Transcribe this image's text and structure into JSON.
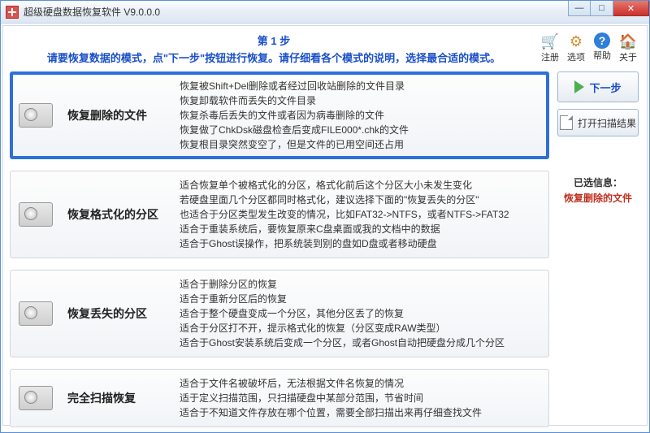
{
  "window": {
    "title": "超级硬盘数据恢复软件 V9.0.0.0"
  },
  "toolbar": {
    "register": "注册",
    "options": "选项",
    "help": "帮助",
    "about": "关于",
    "register_icon": "🛒",
    "options_icon": "⚙",
    "help_icon": "?",
    "about_icon": "🏠"
  },
  "step": {
    "no": "第 1 步",
    "desc": "请要恢复数据的模式，点\"下一步\"按钮进行恢复。请仔细看各个模式的说明，选择最合适的模式。"
  },
  "modes": [
    {
      "title": "恢复删除的文件",
      "selected": true,
      "lines": [
        "恢复被Shift+Del删除或者经过回收站删除的文件目录",
        "恢复卸载软件而丢失的文件目录",
        "恢复杀毒后丢失的文件或者因为病毒删除的文件",
        "恢复做了ChkDsk磁盘检查后变成FILE000*.chk的文件",
        "恢复根目录突然变空了，但是文件的已用空间还占用"
      ]
    },
    {
      "title": "恢复格式化的分区",
      "selected": false,
      "lines": [
        "适合恢复单个被格式化的分区，格式化前后这个分区大小未发生变化",
        "若硬盘里面几个分区都同时格式化，建议选择下面的\"恢复丢失的分区\"",
        "也适合于分区类型发生改变的情况，比如FAT32->NTFS，或者NTFS->FAT32",
        "适合于重装系统后，要恢复原来C盘桌面或我的文档中的数据",
        "适合于Ghost误操作，把系统装到别的盘如D盘或者移动硬盘"
      ]
    },
    {
      "title": "恢复丢失的分区",
      "selected": false,
      "lines": [
        "适合于删除分区的恢复",
        "适合于重新分区后的恢复",
        "适合于整个硬盘变成一个分区，其他分区丢了的恢复",
        "适合于分区打不开，提示格式化的恢复（分区变成RAW类型）",
        "适合于Ghost安装系统后变成一个分区，或者Ghost自动把硬盘分成几个分区"
      ]
    },
    {
      "title": "完全扫描恢复",
      "selected": false,
      "lines": [
        "适合于文件名被破坏后，无法根据文件名恢复的情况",
        "适于定义扫描范围，只扫描硬盘中某部分范围，节省时间",
        "适合于不知道文件存放在哪个位置，需要全部扫描出来再仔细查找文件"
      ]
    }
  ],
  "buttons": {
    "next": "下一步",
    "open_result": "打开扫描结果"
  },
  "selection": {
    "label": "已选信息：",
    "value": "恢复删除的文件"
  }
}
